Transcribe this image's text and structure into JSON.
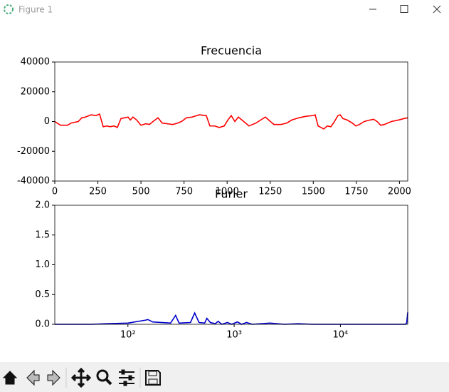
{
  "window": {
    "title": "Figure 1"
  },
  "chart_data": [
    {
      "type": "line",
      "title": "Frecuencia",
      "x": [
        0,
        33,
        74,
        95,
        136,
        157,
        178,
        211,
        239,
        260,
        281,
        301,
        322,
        343,
        363,
        384,
        405,
        425,
        438,
        454,
        475,
        500,
        528,
        549,
        570,
        599,
        623,
        652,
        685,
        714,
        735,
        764,
        797,
        838,
        879,
        900,
        929,
        954,
        983,
        1004,
        1024,
        1045,
        1065,
        1086,
        1127,
        1168,
        1201,
        1222,
        1251,
        1272,
        1313,
        1346,
        1375,
        1416,
        1457,
        1499,
        1511,
        1528,
        1561,
        1581,
        1602,
        1623,
        1643,
        1656,
        1672,
        1697,
        1726,
        1747,
        1767,
        1796,
        1829,
        1850,
        1870,
        1891,
        1912,
        1953,
        1994,
        2027,
        2048
      ],
      "series": [
        {
          "color": "#ff0000",
          "values": [
            0,
            -2500,
            -2500,
            -1000,
            0,
            2500,
            3000,
            4500,
            4000,
            5000,
            -3500,
            -3000,
            -3500,
            -3000,
            -4000,
            2000,
            2500,
            3000,
            1000,
            3000,
            1000,
            -2500,
            -1500,
            -2000,
            0,
            2500,
            -1000,
            -1500,
            -2000,
            -1000,
            0,
            2500,
            3000,
            4500,
            4000,
            -3000,
            -3000,
            -4000,
            -3000,
            1000,
            4000,
            0,
            3000,
            1000,
            -3000,
            -1000,
            1500,
            3000,
            0,
            -2000,
            -2000,
            -1000,
            1000,
            2500,
            3500,
            4000,
            4500,
            -3000,
            -5000,
            -3000,
            -3500,
            0,
            4000,
            4500,
            2000,
            1000,
            -1000,
            -3000,
            -2000,
            0,
            1000,
            1500,
            0,
            -2500,
            -2000,
            0,
            1000,
            2000,
            2500
          ]
        }
      ],
      "xlim": [
        0,
        2048
      ],
      "xticks": [
        0,
        250,
        500,
        750,
        1000,
        1250,
        1500,
        1750,
        2000
      ],
      "ylim": [
        -40000,
        40000
      ],
      "yticks": [
        40000,
        20000,
        0,
        -20000,
        -40000
      ]
    },
    {
      "type": "line",
      "title": "Furier",
      "xscale": "log",
      "x": [
        20.5,
        46,
        63,
        100,
        147,
        154,
        171,
        252,
        281,
        303,
        388,
        425,
        467,
        528,
        553,
        597,
        665,
        707,
        764,
        863,
        948,
        1071,
        1175,
        1309,
        1482,
        2178,
        2963,
        4028,
        5483,
        25600,
        40600,
        42000,
        43000
      ],
      "series": [
        {
          "color": "#0000cc",
          "values": [
            0,
            0,
            0.01,
            0.02,
            0.07,
            0.08,
            0.04,
            0.02,
            0.15,
            0.02,
            0.03,
            0.19,
            0.03,
            0.02,
            0.1,
            0.03,
            0.01,
            0.05,
            0,
            0.03,
            0,
            0.04,
            0,
            0.03,
            0,
            0.02,
            0,
            0.01,
            0,
            0,
            0,
            0.02,
            0.2
          ]
        }
      ],
      "xlim": [
        20.5,
        43000
      ],
      "xticks": [
        {
          "value": 100,
          "label": "10²"
        },
        {
          "value": 1000,
          "label": "10³"
        },
        {
          "value": 10000,
          "label": "10⁴"
        }
      ],
      "ylim": [
        0,
        2
      ],
      "yticks": [
        {
          "value": 0,
          "label": "0.0"
        },
        {
          "value": 0.5,
          "label": "0.5"
        },
        {
          "value": 1,
          "label": "1.0"
        },
        {
          "value": 1.5,
          "label": "1.5"
        },
        {
          "value": 2,
          "label": "2.0"
        }
      ]
    }
  ]
}
